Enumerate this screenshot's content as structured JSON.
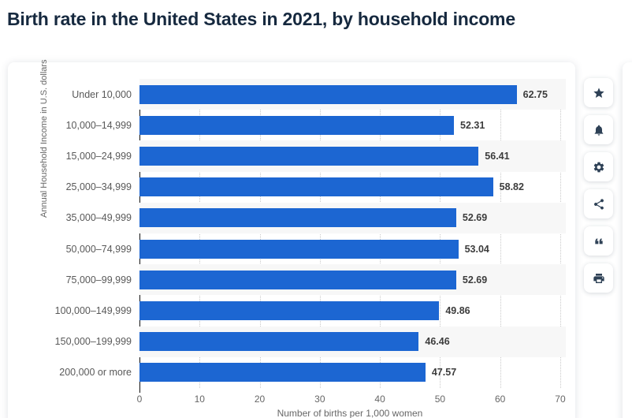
{
  "header": {
    "title": "Birth rate in the United States in 2021, by household income"
  },
  "chart_data": {
    "type": "bar",
    "orientation": "horizontal",
    "title": "Birth rate in the United States in 2021, by household income",
    "categories": [
      "Under 10,000",
      "10,000–14,999",
      "15,000–24,999",
      "25,000–34,999",
      "35,000–49,999",
      "50,000–74,999",
      "75,000–99,999",
      "100,000–149,999",
      "150,000–199,999",
      "200,000 or more"
    ],
    "values": [
      62.75,
      52.31,
      56.41,
      58.82,
      52.69,
      53.04,
      52.69,
      49.86,
      46.46,
      47.57
    ],
    "value_labels": [
      "62.75",
      "52.31",
      "56.41",
      "58.82",
      "52.69",
      "53.04",
      "52.69",
      "49.86",
      "46.46",
      "47.57"
    ],
    "xlabel": "Number of births per 1,000 women",
    "ylabel": "Annual Household Income in U.S. dollars",
    "xlim": [
      0,
      70
    ],
    "xticks": [
      0,
      10,
      20,
      30,
      40,
      50,
      60,
      70
    ],
    "grid": "vertical-dotted",
    "legend": "none",
    "row_striping": true
  },
  "colors": {
    "bar": "#1c66d2",
    "title": "#16293f",
    "stripe": "#f7f7f7",
    "gridline": "#c9c9c9",
    "icon": "#2e4156",
    "muted_text": "#666666"
  },
  "toolbar": {
    "buttons": [
      {
        "name": "favorite-button",
        "icon": "star-icon"
      },
      {
        "name": "notification-button",
        "icon": "bell-icon"
      },
      {
        "name": "settings-button",
        "icon": "gear-icon"
      },
      {
        "name": "share-button",
        "icon": "share-icon"
      },
      {
        "name": "citation-button",
        "icon": "quote-icon"
      },
      {
        "name": "print-button",
        "icon": "printer-icon"
      }
    ]
  }
}
